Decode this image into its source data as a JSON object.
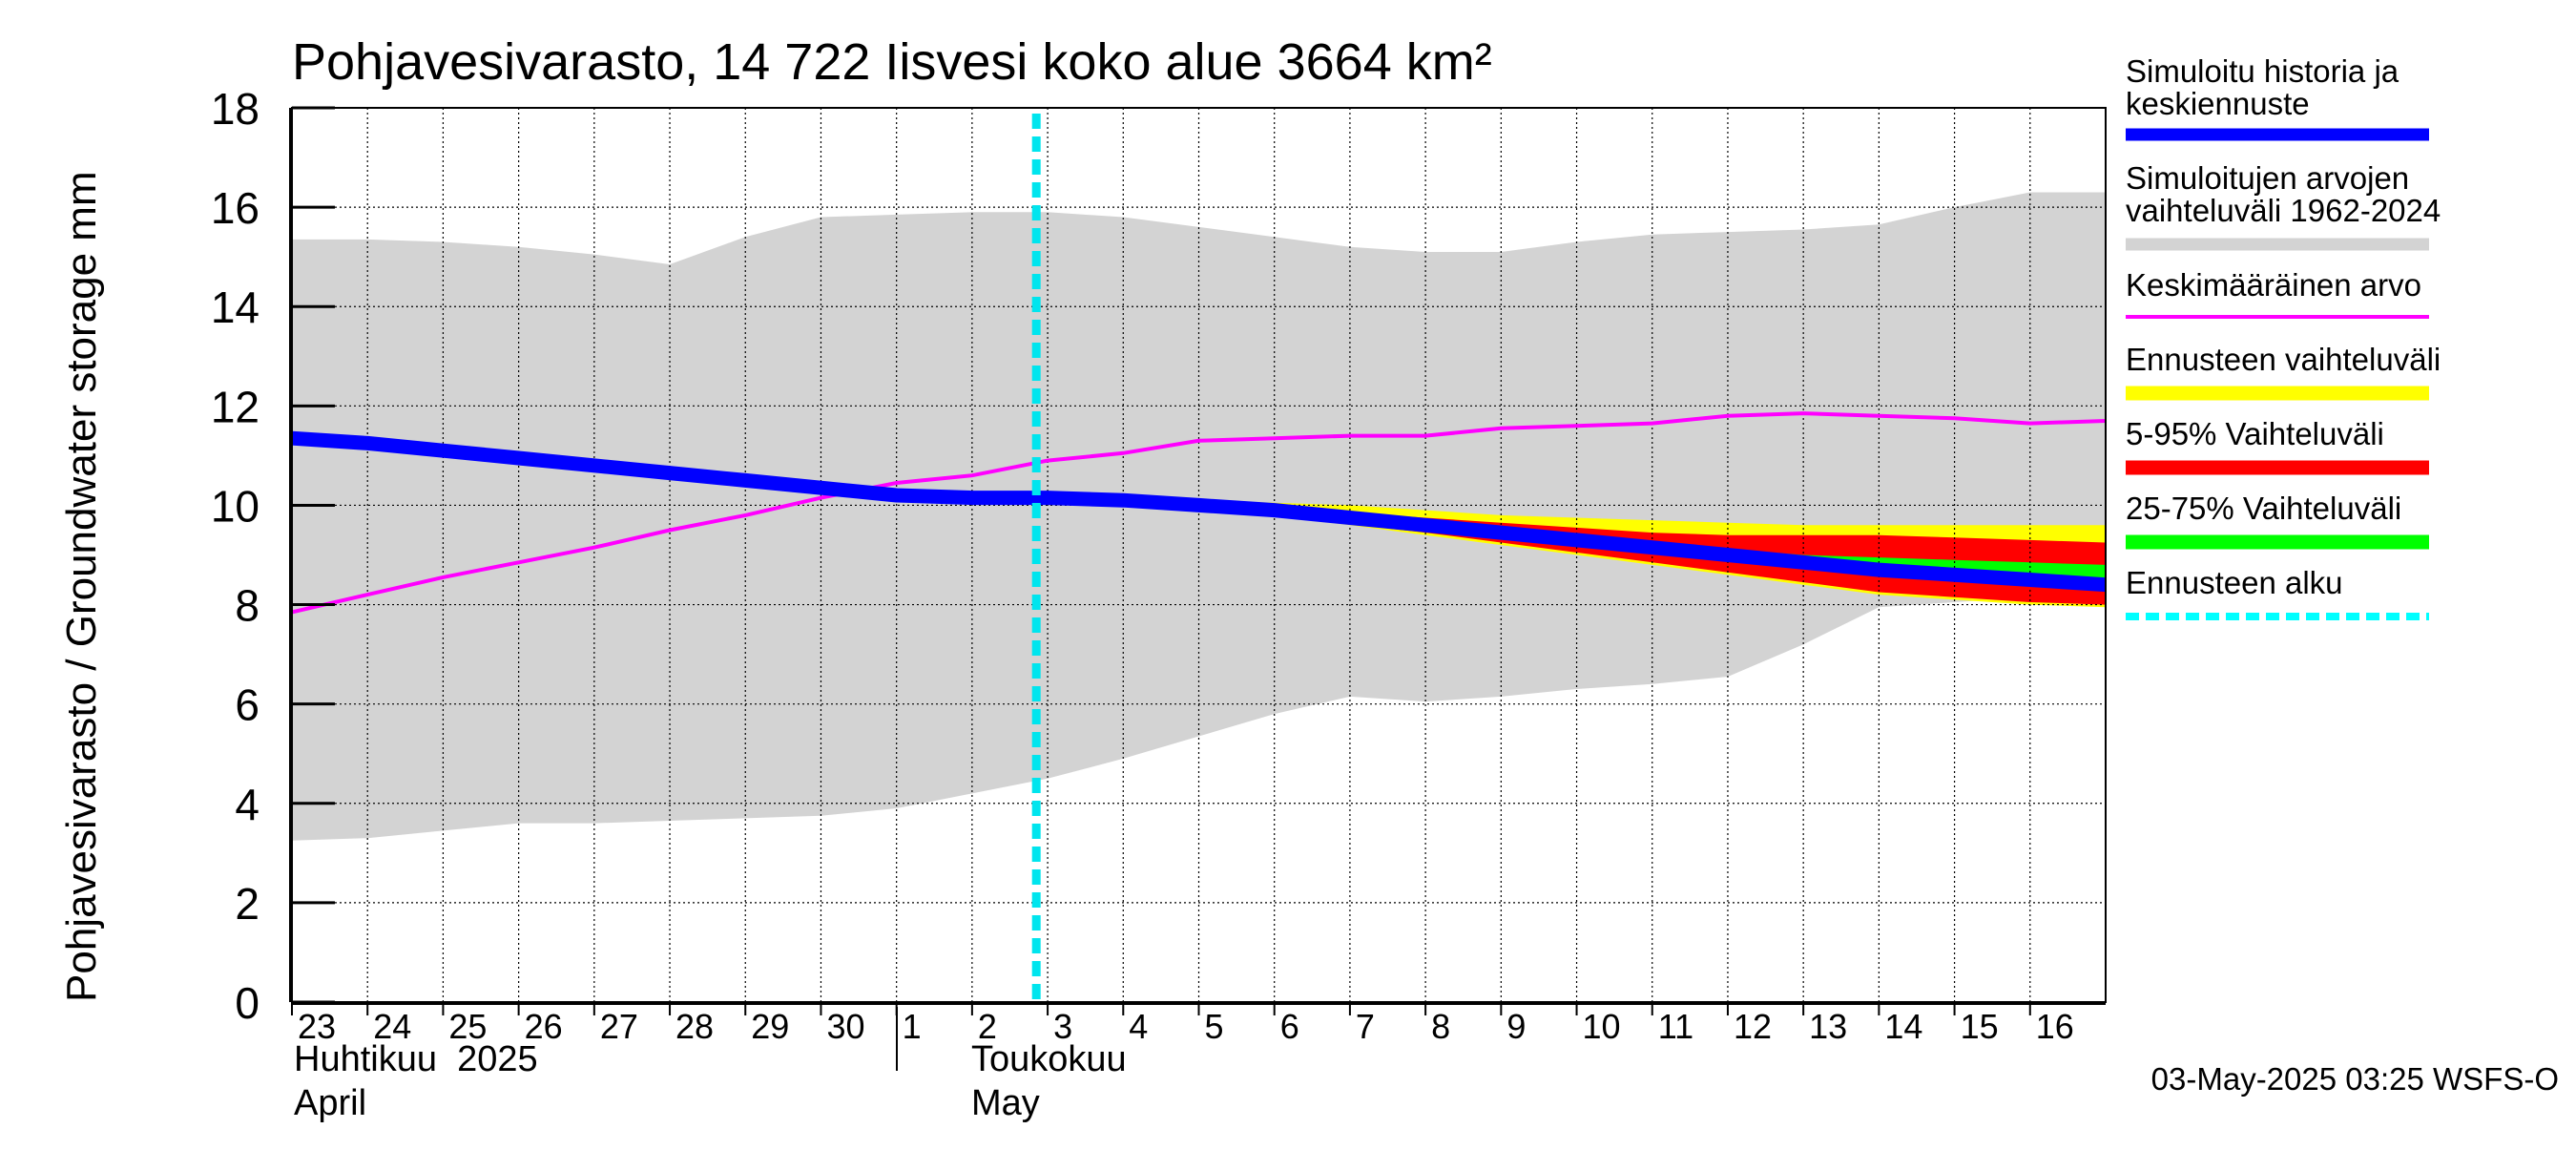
{
  "chart_data": {
    "type": "area",
    "title": "Pohjavesivarasto, 14 722 Iisvesi koko alue 3664 km²",
    "ylabel": "Pohjavesivarasto / Groundwater storage   mm",
    "ylim": [
      0,
      18
    ],
    "yticks": [
      "0",
      "2",
      "4",
      "6",
      "8",
      "10",
      "12",
      "14",
      "16",
      "18"
    ],
    "grid": true,
    "x_labels": [
      "23",
      "24",
      "25",
      "26",
      "27",
      "28",
      "29",
      "30",
      "1",
      "2",
      "3",
      "4",
      "5",
      "6",
      "7",
      "8",
      "9",
      "10",
      "11",
      "12",
      "13",
      "14",
      "15",
      "16"
    ],
    "month_labels": [
      {
        "fi": "Huhtikuu  2025",
        "en": "April"
      },
      {
        "fi": "Toukokuu",
        "en": "May"
      }
    ],
    "legend": [
      {
        "label": "Simuloitu historia ja keskiennuste",
        "color": "#0000ff"
      },
      {
        "label": "Simuloitujen arvojen vaihteluväli 1962-2024",
        "color": "#d3d3d3"
      },
      {
        "label": "Keskimääräinen arvo",
        "color": "#ff00ff"
      },
      {
        "label": "Ennusteen vaihteluväli",
        "color": "#ffff00"
      },
      {
        "label": "5-95% Vaihteluväli",
        "color": "#ff0000"
      },
      {
        "label": "25-75% Vaihteluväli",
        "color": "#00ff00"
      },
      {
        "label": "Ennusteen alku",
        "color": "#00ffff"
      }
    ],
    "forecast_start_day": 10,
    "x": [
      0,
      1,
      2,
      3,
      4,
      5,
      6,
      7,
      8,
      9,
      10,
      11,
      12,
      13,
      14,
      15,
      16,
      17,
      18,
      19,
      20,
      21,
      22,
      23,
      24
    ],
    "series": [
      {
        "name": "Simuloitujen arvojen vaihteluväli 1962-2024 (max)",
        "values": [
          15.35,
          15.35,
          15.3,
          15.2,
          15.05,
          14.85,
          15.4,
          15.8,
          15.85,
          15.9,
          15.9,
          15.8,
          15.6,
          15.4,
          15.2,
          15.1,
          15.1,
          15.3,
          15.45,
          15.5,
          15.55,
          15.65,
          16.0,
          16.3,
          16.3
        ]
      },
      {
        "name": "Simuloitujen arvojen vaihteluväli 1962-2024 (min)",
        "values": [
          3.25,
          3.3,
          3.45,
          3.6,
          3.6,
          3.65,
          3.7,
          3.75,
          3.9,
          4.2,
          4.5,
          4.9,
          5.35,
          5.8,
          6.15,
          6.05,
          6.15,
          6.3,
          6.4,
          6.55,
          7.2,
          7.95,
          8.05,
          8.15,
          8.15
        ]
      },
      {
        "name": "Keskimääräinen arvo",
        "values": [
          7.85,
          8.2,
          8.55,
          8.85,
          9.15,
          9.5,
          9.8,
          10.15,
          10.45,
          10.6,
          10.9,
          11.05,
          11.3,
          11.35,
          11.4,
          11.4,
          11.55,
          11.6,
          11.65,
          11.8,
          11.85,
          11.8,
          11.75,
          11.65,
          11.7
        ]
      },
      {
        "name": "Simuloitu historia ja keskiennuste",
        "values": [
          11.35,
          11.25,
          11.1,
          10.95,
          10.8,
          10.65,
          10.5,
          10.35,
          10.2,
          10.15,
          10.15,
          10.1,
          10.0,
          9.9,
          9.75,
          9.6,
          9.45,
          9.3,
          9.15,
          9.0,
          8.85,
          8.7,
          8.6,
          8.5,
          8.4
        ]
      },
      {
        "name": "Ennusteen vaihteluväli (max)",
        "values": [
          null,
          null,
          null,
          null,
          null,
          null,
          null,
          null,
          null,
          null,
          10.15,
          10.15,
          10.1,
          10.05,
          10.0,
          9.9,
          9.8,
          9.75,
          9.7,
          9.65,
          9.6,
          9.6,
          9.6,
          9.6,
          9.6
        ]
      },
      {
        "name": "Ennusteen vaihteluväli (min)",
        "values": [
          null,
          null,
          null,
          null,
          null,
          null,
          null,
          null,
          null,
          null,
          10.15,
          10.1,
          9.95,
          9.8,
          9.6,
          9.4,
          9.2,
          9.0,
          8.8,
          8.6,
          8.4,
          8.2,
          8.1,
          8.0,
          7.95
        ]
      },
      {
        "name": "5-95% Vaihteluväli (max)",
        "values": [
          null,
          null,
          null,
          null,
          null,
          null,
          null,
          null,
          null,
          null,
          10.15,
          10.12,
          10.05,
          9.95,
          9.85,
          9.75,
          9.65,
          9.55,
          9.45,
          9.4,
          9.4,
          9.4,
          9.35,
          9.3,
          9.25
        ]
      },
      {
        "name": "5-95% Vaihteluväli (min)",
        "values": [
          null,
          null,
          null,
          null,
          null,
          null,
          null,
          null,
          null,
          null,
          10.15,
          10.1,
          9.95,
          9.8,
          9.62,
          9.45,
          9.25,
          9.05,
          8.85,
          8.65,
          8.45,
          8.25,
          8.15,
          8.05,
          8.0
        ]
      },
      {
        "name": "25-75% Vaihteluväli (max)",
        "values": [
          null,
          null,
          null,
          null,
          null,
          null,
          null,
          null,
          null,
          null,
          10.15,
          10.12,
          10.03,
          9.93,
          9.8,
          9.65,
          9.5,
          9.38,
          9.25,
          9.12,
          9.0,
          8.95,
          8.9,
          8.85,
          8.8
        ]
      },
      {
        "name": "25-75% Vaihteluväli (min)",
        "values": [
          null,
          null,
          null,
          null,
          null,
          null,
          null,
          null,
          null,
          null,
          10.15,
          10.1,
          9.98,
          9.87,
          9.7,
          9.55,
          9.4,
          9.25,
          9.1,
          8.95,
          8.8,
          8.65,
          8.55,
          8.45,
          8.35
        ]
      }
    ]
  },
  "footer": {
    "timestamp": "03-May-2025 03:25 WSFS-O"
  }
}
